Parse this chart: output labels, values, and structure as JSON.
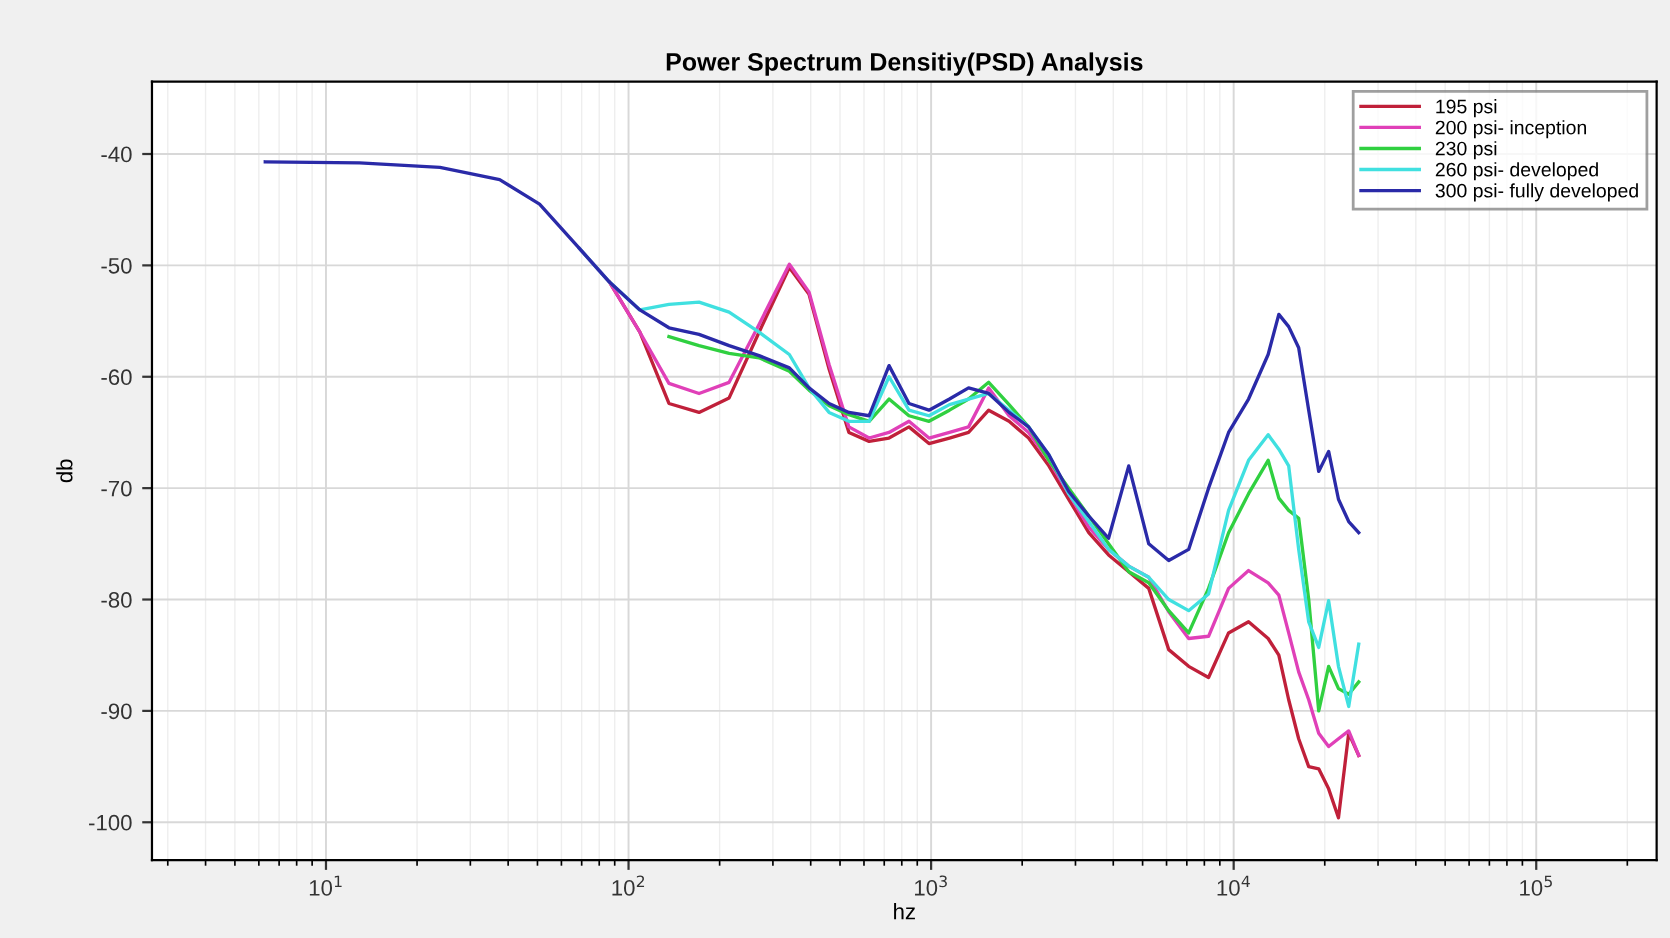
{
  "chart_data": {
    "type": "line",
    "title": "Power Spectrum Densitiy(PSD) Analysis",
    "xlabel": "hz",
    "ylabel": "db",
    "log": "x",
    "x": [
      6.3,
      12.9,
      23.8,
      37.5,
      50.8,
      68.9,
      86.5,
      109,
      136,
      171,
      215,
      270,
      340,
      395,
      460,
      535,
      624,
      726,
      845,
      984,
      1150,
      1330,
      1550,
      1810,
      2100,
      2450,
      2850,
      3320,
      3860,
      4500,
      5240,
      6100,
      7100,
      8260,
      9620,
      11200,
      13000,
      14100,
      15200,
      16400,
      17700,
      19100,
      20600,
      22200,
      24000,
      25900
    ],
    "series": [
      {
        "name": "195 psi",
        "color": "#c0203a",
        "values": [
          null,
          null,
          null,
          null,
          null,
          null,
          -51.5,
          -56,
          -62.4,
          -63.2,
          -61.9,
          -56,
          -50.2,
          -52.6,
          -59.3,
          -65,
          -65.8,
          -65.5,
          -64.5,
          -66,
          -65.5,
          -65,
          -63,
          -64,
          -65.5,
          -68,
          -71,
          -74,
          -76,
          -77.5,
          -79,
          -84.5,
          -86,
          -87,
          -83,
          -82,
          -83.5,
          -85,
          -89,
          -92.5,
          -95,
          -95.2,
          -97,
          -99.6,
          -92,
          -94
        ]
      },
      {
        "name": "200 psi- inception",
        "color": "#e040b8",
        "values": [
          null,
          null,
          null,
          null,
          null,
          -48.5,
          -51.5,
          -56,
          -60.6,
          -61.5,
          -60.5,
          -55.3,
          -49.9,
          -52.4,
          -58.9,
          -64.5,
          -65.5,
          -65,
          -64,
          -65.5,
          -65,
          -64.5,
          -61,
          -63.5,
          -65,
          -67.5,
          -70.5,
          -73.5,
          -75.5,
          -77,
          -78,
          -81.1,
          -83.5,
          -83.3,
          -79,
          -77.4,
          -78.5,
          -79.6,
          -83,
          -86.5,
          -89,
          -92,
          -93.2,
          -92.5,
          -91.8,
          -94
        ]
      },
      {
        "name": "230 psi",
        "color": "#30d040",
        "values": [
          null,
          null,
          null,
          null,
          null,
          null,
          null,
          null,
          -56.4,
          -57.2,
          -57.9,
          -58.3,
          -59.5,
          -61.2,
          -62.6,
          -63.4,
          -64,
          -62,
          -63.5,
          -64,
          -63,
          -62,
          -60.5,
          -62.5,
          -64.5,
          -67.5,
          -70,
          -72.5,
          -75,
          -77.5,
          -78.5,
          -81,
          -83,
          -79,
          -74,
          -70.5,
          -67.5,
          -70.9,
          -72,
          -72.7,
          -80,
          -90,
          -86,
          -88,
          -88.5,
          -87.4
        ]
      },
      {
        "name": "260 psi- developed",
        "color": "#40e0e0",
        "values": [
          null,
          null,
          null,
          null,
          null,
          -48.5,
          -51.5,
          -54,
          -53.5,
          -53.3,
          -54.2,
          -56,
          -58,
          -61,
          -63.2,
          -64,
          -64,
          -60,
          -63,
          -63.5,
          -62.5,
          -62,
          -61.5,
          -63,
          -64.5,
          -67,
          -70.5,
          -73,
          -75.5,
          -77,
          -78,
          -80,
          -81,
          -79.5,
          -72,
          -67.5,
          -65.2,
          -66.5,
          -68,
          -75.5,
          -82,
          -84.3,
          -80.1,
          -86,
          -89.6,
          -84
        ]
      },
      {
        "name": "300 psi- fully developed",
        "color": "#2a2aa8",
        "values": [
          -40.7,
          -40.8,
          -41.2,
          -42.3,
          -44.5,
          -48.5,
          -51.5,
          -54,
          -55.6,
          -56.2,
          -57.2,
          -58.1,
          -59.2,
          -61,
          -62.4,
          -63.2,
          -63.5,
          -59,
          -62.4,
          -63,
          -62,
          -61,
          -61.5,
          -63.2,
          -64.5,
          -67,
          -70.3,
          -72.5,
          -74.5,
          -68,
          -75,
          -76.5,
          -75.5,
          -70,
          -65,
          -62,
          -58,
          -54.4,
          -55.5,
          -57.4,
          -63,
          -68.5,
          -66.7,
          -71,
          -73,
          -74
        ]
      }
    ],
    "xlim": [
      2.66,
      250000
    ],
    "ylim": [
      -103.4,
      -33.5
    ],
    "xticks": [
      {
        "value": 10,
        "label": "10$^{1}$"
      },
      {
        "value": 100,
        "label": "10$^{2}$"
      },
      {
        "value": 1000,
        "label": "10$^{3}$"
      },
      {
        "value": 10000,
        "label": "10$^{4}$"
      },
      {
        "value": 100000,
        "label": "10$^{5}$"
      }
    ],
    "yticks": [
      -100,
      -90,
      -80,
      -70,
      -60,
      -50,
      -40
    ],
    "grid": true,
    "legend": "top right",
    "line_style": "solid",
    "marker": "none"
  }
}
